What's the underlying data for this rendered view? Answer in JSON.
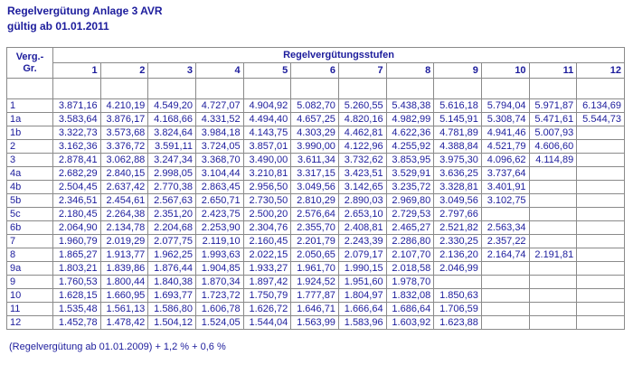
{
  "header": {
    "title": "Regelvergütung Anlage 3 AVR",
    "subtitle": "gültig ab 01.01.2011"
  },
  "table": {
    "group_header": [
      "Verg.-",
      "Gr."
    ],
    "steps_header": "Regelvergütungsstufen",
    "steps": [
      1,
      2,
      3,
      4,
      5,
      6,
      7,
      8,
      9,
      10,
      11,
      12
    ],
    "rows": [
      [
        "1",
        "3.871,16",
        "4.210,19",
        "4.549,20",
        "4.727,07",
        "4.904,92",
        "5.082,70",
        "5.260,55",
        "5.438,38",
        "5.616,18",
        "5.794,04",
        "5.971,87",
        "6.134,69"
      ],
      [
        "1a",
        "3.583,64",
        "3.876,17",
        "4.168,66",
        "4.331,52",
        "4.494,40",
        "4.657,25",
        "4.820,16",
        "4.982,99",
        "5.145,91",
        "5.308,74",
        "5.471,61",
        "5.544,73"
      ],
      [
        "1b",
        "3.322,73",
        "3.573,68",
        "3.824,64",
        "3.984,18",
        "4.143,75",
        "4.303,29",
        "4.462,81",
        "4.622,36",
        "4.781,89",
        "4.941,46",
        "5.007,93"
      ],
      [
        "2",
        "3.162,36",
        "3.376,72",
        "3.591,11",
        "3.724,05",
        "3.857,01",
        "3.990,00",
        "4.122,96",
        "4.255,92",
        "4.388,84",
        "4.521,79",
        "4.606,60"
      ],
      [
        "3",
        "2.878,41",
        "3.062,88",
        "3.247,34",
        "3.368,70",
        "3.490,00",
        "3.611,34",
        "3.732,62",
        "3.853,95",
        "3.975,30",
        "4.096,62",
        "4.114,89"
      ],
      [
        "4a",
        "2.682,29",
        "2.840,15",
        "2.998,05",
        "3.104,44",
        "3.210,81",
        "3.317,15",
        "3.423,51",
        "3.529,91",
        "3.636,25",
        "3.737,64"
      ],
      [
        "4b",
        "2.504,45",
        "2.637,42",
        "2.770,38",
        "2.863,45",
        "2.956,50",
        "3.049,56",
        "3.142,65",
        "3.235,72",
        "3.328,81",
        "3.401,91"
      ],
      [
        "5b",
        "2.346,51",
        "2.454,61",
        "2.567,63",
        "2.650,71",
        "2.730,50",
        "2.810,29",
        "2.890,03",
        "2.969,80",
        "3.049,56",
        "3.102,75"
      ],
      [
        "5c",
        "2.180,45",
        "2.264,38",
        "2.351,20",
        "2.423,75",
        "2.500,20",
        "2.576,64",
        "2.653,10",
        "2.729,53",
        "2.797,66"
      ],
      [
        "6b",
        "2.064,90",
        "2.134,78",
        "2.204,68",
        "2.253,90",
        "2.304,76",
        "2.355,70",
        "2.408,81",
        "2.465,27",
        "2.521,82",
        "2.563,34"
      ],
      [
        "7",
        "1.960,79",
        "2.019,29",
        "2.077,75",
        "2.119,10",
        "2.160,45",
        "2.201,79",
        "2.243,39",
        "2.286,80",
        "2.330,25",
        "2.357,22"
      ],
      [
        "8",
        "1.865,27",
        "1.913,77",
        "1.962,25",
        "1.993,63",
        "2.022,15",
        "2.050,65",
        "2.079,17",
        "2.107,70",
        "2.136,20",
        "2.164,74",
        "2.191,81"
      ],
      [
        "9a",
        "1.803,21",
        "1.839,86",
        "1.876,44",
        "1.904,85",
        "1.933,27",
        "1.961,70",
        "1.990,15",
        "2.018,58",
        "2.046,99"
      ],
      [
        "9",
        "1.760,53",
        "1.800,44",
        "1.840,38",
        "1.870,34",
        "1.897,42",
        "1.924,52",
        "1.951,60",
        "1.978,70"
      ],
      [
        "10",
        "1.628,15",
        "1.660,95",
        "1.693,77",
        "1.723,72",
        "1.750,79",
        "1.777,87",
        "1.804,97",
        "1.832,08",
        "1.850,63"
      ],
      [
        "11",
        "1.535,48",
        "1.561,13",
        "1.586,80",
        "1.606,78",
        "1.626,72",
        "1.646,71",
        "1.666,64",
        "1.686,64",
        "1.706,59"
      ],
      [
        "12",
        "1.452,78",
        "1.478,42",
        "1.504,12",
        "1.524,05",
        "1.544,04",
        "1.563,99",
        "1.583,96",
        "1.603,92",
        "1.623,88"
      ]
    ]
  },
  "footer": "(Regelvergütung ab 01.01.2009) + 1,2 % + 0,6 %"
}
